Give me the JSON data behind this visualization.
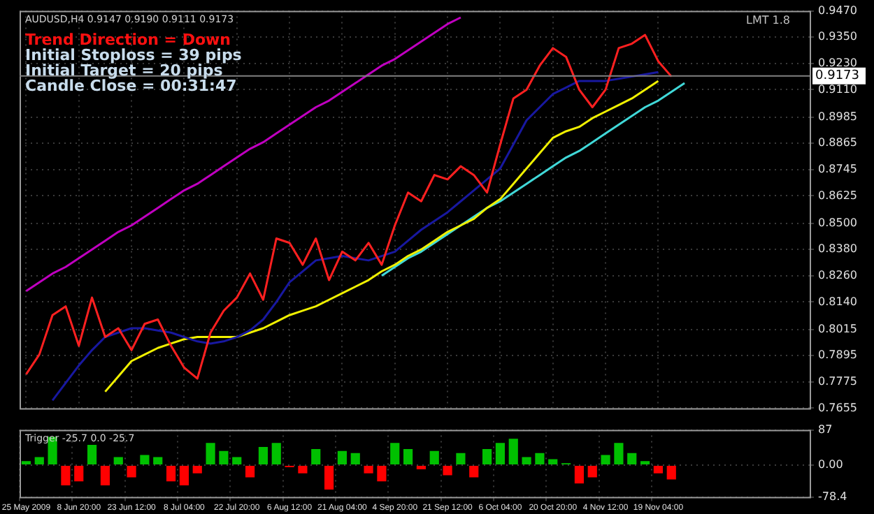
{
  "chart_data": [
    {
      "type": "line",
      "title": "AUDUSD,H4 0.9147 0.9190 0.9111 0.9173",
      "series": [
        {
          "color": "#ff2020",
          "values": [
            0.781,
            0.79,
            0.808,
            0.812,
            0.794,
            0.816,
            0.798,
            0.802,
            0.792,
            0.804,
            0.806,
            0.794,
            0.784,
            0.779,
            0.8,
            0.81,
            0.816,
            0.827,
            0.815,
            0.843,
            0.841,
            0.831,
            0.843,
            0.824,
            0.837,
            0.833,
            0.841,
            0.831,
            0.849,
            0.864,
            0.86,
            0.872,
            0.87,
            0.876,
            0.872,
            0.864,
            0.886,
            0.907,
            0.911,
            0.922,
            0.93,
            0.926,
            0.911,
            0.903,
            0.911,
            0.93,
            0.932,
            0.936,
            0.924,
            0.917,
            null,
            null,
            null,
            null,
            null,
            null,
            null,
            null,
            null,
            null
          ]
        },
        {
          "color": "#1818a0",
          "values": [
            null,
            null,
            0.769,
            0.777,
            0.785,
            0.792,
            0.798,
            0.8,
            0.802,
            0.802,
            0.801,
            0.8,
            0.798,
            0.796,
            0.795,
            0.796,
            0.798,
            0.801,
            0.806,
            0.814,
            0.823,
            0.828,
            0.833,
            0.834,
            0.835,
            0.834,
            0.833,
            0.835,
            0.837,
            0.842,
            0.847,
            0.851,
            0.855,
            0.86,
            0.865,
            0.87,
            0.875,
            0.886,
            0.897,
            0.903,
            0.909,
            0.912,
            0.915,
            0.915,
            0.915,
            0.916,
            0.917,
            0.918,
            0.919,
            null,
            null,
            null,
            null,
            null,
            null,
            null,
            null,
            null,
            null,
            null
          ]
        },
        {
          "color": "#f0f000",
          "values": [
            null,
            null,
            null,
            null,
            null,
            null,
            0.773,
            0.78,
            0.787,
            0.79,
            0.793,
            0.795,
            0.797,
            0.798,
            0.798,
            0.798,
            0.798,
            0.8,
            0.802,
            0.805,
            0.808,
            0.81,
            0.812,
            0.815,
            0.818,
            0.821,
            0.824,
            0.828,
            0.831,
            0.835,
            0.838,
            0.842,
            0.846,
            0.849,
            0.852,
            0.857,
            0.861,
            0.868,
            0.875,
            0.882,
            0.889,
            0.892,
            0.894,
            0.898,
            0.901,
            0.904,
            0.907,
            0.911,
            0.915,
            null,
            null,
            null,
            null,
            null,
            null,
            null,
            null,
            null,
            null,
            null
          ]
        },
        {
          "color": "#c000c0",
          "values": [
            0.819,
            0.823,
            0.827,
            0.83,
            0.834,
            0.838,
            0.842,
            0.846,
            0.849,
            0.853,
            0.857,
            0.861,
            0.865,
            0.868,
            0.872,
            0.876,
            0.88,
            0.884,
            0.887,
            0.891,
            0.895,
            0.899,
            0.903,
            0.906,
            0.91,
            0.914,
            0.918,
            0.922,
            0.925,
            0.929,
            0.933,
            0.937,
            0.941,
            0.944,
            null,
            null,
            null,
            null,
            null,
            null,
            null,
            null,
            null,
            null,
            null,
            null,
            null,
            null,
            null,
            null,
            null,
            null,
            null,
            null,
            null,
            null,
            null,
            null,
            null,
            null
          ]
        },
        {
          "color": "#40d8d8",
          "values": [
            null,
            null,
            null,
            null,
            null,
            null,
            null,
            null,
            null,
            null,
            null,
            null,
            null,
            null,
            null,
            null,
            null,
            null,
            null,
            null,
            null,
            null,
            null,
            null,
            null,
            null,
            null,
            0.826,
            0.83,
            0.834,
            0.837,
            0.841,
            0.845,
            0.849,
            0.853,
            0.857,
            0.86,
            0.864,
            0.868,
            0.872,
            0.876,
            0.88,
            0.883,
            0.887,
            0.891,
            0.895,
            0.899,
            0.903,
            0.906,
            0.91,
            0.914,
            null,
            null,
            null,
            null,
            null,
            null,
            null,
            null,
            null
          ]
        }
      ],
      "ylim": [
        0.7655,
        0.947
      ],
      "yticks": [
        {
          "value": 0.947,
          "label": "0.9470"
        },
        {
          "value": 0.935,
          "label": "0.9350"
        },
        {
          "value": 0.923,
          "label": "0.9230"
        },
        {
          "value": 0.911,
          "label": "0.9110"
        },
        0.8985,
        0.8865,
        0.8745,
        0.8625,
        {
          "value": 0.85,
          "label": "0.8500"
        },
        {
          "value": 0.838,
          "label": "0.8380"
        },
        {
          "value": 0.826,
          "label": "0.8260"
        },
        {
          "value": 0.814,
          "label": "0.8140"
        },
        0.8015,
        0.7895,
        0.7775,
        0.7655
      ],
      "grid": true,
      "tick_labels": "y",
      "marker": "none",
      "line_style": "solid",
      "ref_lines": [
        {
          "axis": "y",
          "value": 0.9173,
          "label": "0.9173",
          "color": "#808080"
        }
      ],
      "annotations": [
        "Trend Direction = Down",
        "Initial Stoploss = 39 pips",
        "Initial Target = 20 pips",
        "Candle Close = 00:31:47",
        "LMT 1.8"
      ]
    },
    {
      "type": "bar",
      "title": "Trigger -25.7 0.0 -25.7",
      "categories": [
        "25 May 2009",
        null,
        null,
        null,
        "8 Jun 20:00",
        null,
        null,
        null,
        "23 Jun 12:00",
        null,
        null,
        null,
        "8 Jul 04:00",
        null,
        null,
        null,
        "22 Jul 20:00",
        null,
        null,
        null,
        "6 Aug 12:00",
        null,
        null,
        null,
        "21 Aug 04:00",
        null,
        null,
        null,
        "4 Sep 20:00",
        null,
        null,
        null,
        "21 Sep 12:00",
        null,
        null,
        null,
        "6 Oct 04:00",
        null,
        null,
        null,
        "20 Oct 20:00",
        null,
        null,
        null,
        "4 Nov 12:00",
        null,
        null,
        null,
        "19 Nov 04:00",
        null,
        null,
        null,
        null,
        null,
        null,
        null,
        null,
        null,
        null,
        null
      ],
      "values": [
        10,
        20,
        70,
        -50,
        -40,
        50,
        -50,
        20,
        -30,
        25,
        20,
        -40,
        -50,
        -20,
        55,
        35,
        20,
        -30,
        45,
        55,
        -5,
        -20,
        40,
        -60,
        35,
        30,
        -20,
        -40,
        55,
        40,
        -10,
        35,
        -25,
        30,
        -30,
        40,
        55,
        65,
        20,
        30,
        15,
        5,
        -45,
        -30,
        25,
        55,
        30,
        10,
        -20,
        -35,
        null,
        null,
        null,
        null,
        null,
        null,
        null,
        null,
        null,
        null
      ],
      "colors": [
        "#00c000",
        "#00c000",
        "#00c000",
        "#ff0000",
        "#ff0000",
        "#00c000",
        "#ff0000",
        "#00c000",
        "#ff0000",
        "#00c000",
        "#00c000",
        "#ff0000",
        "#ff0000",
        "#ff0000",
        "#00c000",
        "#00c000",
        "#00c000",
        "#ff0000",
        "#00c000",
        "#00c000",
        "#ff0000",
        "#ff0000",
        "#00c000",
        "#ff0000",
        "#00c000",
        "#00c000",
        "#ff0000",
        "#ff0000",
        "#00c000",
        "#00c000",
        "#ff0000",
        "#00c000",
        "#ff0000",
        "#00c000",
        "#ff0000",
        "#00c000",
        "#00c000",
        "#00c000",
        "#00c000",
        "#00c000",
        "#00c000",
        "#00c000",
        "#ff0000",
        "#ff0000",
        "#00c000",
        "#00c000",
        "#00c000",
        "#00c000",
        "#ff0000",
        "#ff0000",
        "#00c000",
        "#00c000",
        "#00c000",
        "#00c000",
        "#00c000",
        "#00c000",
        "#00c000",
        "#00c000",
        "#00c000",
        "#00c000"
      ],
      "ylim": [
        -78.4,
        87
      ],
      "yticks": [
        87,
        {
          "value": 0,
          "label": "0.00"
        },
        -78.4
      ],
      "grid": true
    }
  ]
}
